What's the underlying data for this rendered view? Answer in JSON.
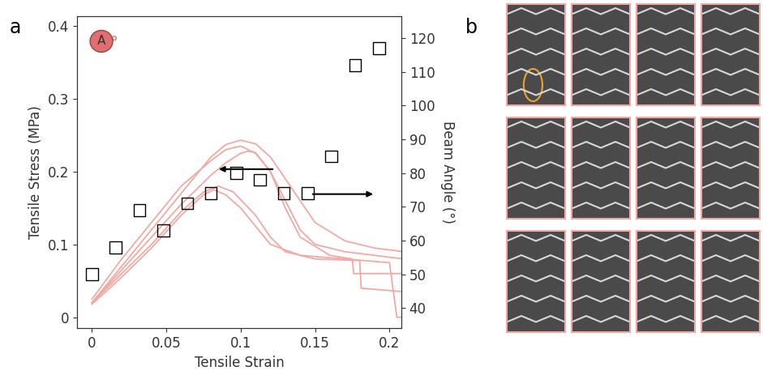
{
  "chart_data": {
    "type": "line",
    "panel_labels": [
      "a",
      "b"
    ],
    "annotation": "A",
    "x_label": "Tensile Strain",
    "y_label": "Tensile Stress (MPa)",
    "y2_label": "Beam Angle (°)",
    "xlim": [
      -0.01,
      0.208
    ],
    "xticks": [
      0,
      0.05,
      0.1,
      0.15,
      0.2
    ],
    "ylim": [
      -0.015,
      0.413
    ],
    "yticks": [
      0,
      0.1,
      0.2,
      0.3,
      0.4
    ],
    "y2lim": [
      34,
      126.5
    ],
    "y2ticks": [
      40,
      50,
      60,
      70,
      80,
      90,
      100,
      110,
      120
    ],
    "grid": false,
    "series": [
      {
        "type": "line",
        "color": "#f2a9a4",
        "line_style": "solid",
        "x": [
          0,
          0.02,
          0.04,
          0.06,
          0.08,
          0.09,
          0.1,
          0.11,
          0.12,
          0.13,
          0.14,
          0.15,
          0.17,
          0.19,
          0.21
        ],
        "values": [
          0.02,
          0.07,
          0.12,
          0.17,
          0.22,
          0.237,
          0.243,
          0.238,
          0.22,
          0.19,
          0.16,
          0.13,
          0.105,
          0.095,
          0.09
        ]
      },
      {
        "type": "line",
        "color": "#f2a9a4",
        "line_style": "solid",
        "x": [
          0,
          0.02,
          0.04,
          0.06,
          0.08,
          0.09,
          0.1,
          0.11,
          0.12,
          0.13,
          0.14,
          0.15,
          0.17,
          0.19,
          0.21
        ],
        "values": [
          0.025,
          0.08,
          0.13,
          0.18,
          0.215,
          0.23,
          0.235,
          0.225,
          0.2,
          0.16,
          0.12,
          0.1,
          0.09,
          0.085,
          0.08
        ]
      },
      {
        "type": "line",
        "color": "#f2a9a4",
        "line_style": "solid",
        "x": [
          0,
          0.02,
          0.04,
          0.06,
          0.08,
          0.09,
          0.1,
          0.105,
          0.11,
          0.12,
          0.13,
          0.14,
          0.16,
          0.175,
          0.176,
          0.21
        ],
        "values": [
          0.02,
          0.065,
          0.11,
          0.155,
          0.195,
          0.212,
          0.225,
          0.228,
          0.226,
          0.2,
          0.15,
          0.11,
          0.085,
          0.08,
          0.06,
          0.06
        ]
      },
      {
        "type": "line",
        "color": "#f2a9a4",
        "line_style": "solid",
        "x": [
          0,
          0.02,
          0.04,
          0.06,
          0.075,
          0.085,
          0.095,
          0.11,
          0.12,
          0.13,
          0.15,
          0.18,
          0.181,
          0.21
        ],
        "values": [
          0.02,
          0.06,
          0.1,
          0.145,
          0.172,
          0.18,
          0.172,
          0.14,
          0.11,
          0.09,
          0.08,
          0.078,
          0.04,
          0.035
        ]
      },
      {
        "type": "line",
        "color": "#f2a9a4",
        "line_style": "solid",
        "x": [
          0,
          0.02,
          0.04,
          0.06,
          0.075,
          0.082,
          0.09,
          0.1,
          0.11,
          0.12,
          0.14,
          0.17,
          0.2,
          0.205,
          0.21
        ],
        "values": [
          0.018,
          0.055,
          0.095,
          0.14,
          0.168,
          0.175,
          0.168,
          0.15,
          0.125,
          0.1,
          0.085,
          0.08,
          0.075,
          0.0,
          0.0
        ]
      },
      {
        "type": "scatter",
        "axis": "y2",
        "color": "#000000",
        "marker": "square",
        "x": [
          0,
          0.016,
          0.032,
          0.048,
          0.064,
          0.08,
          0.097,
          0.113,
          0.129,
          0.145,
          0.161,
          0.177,
          0.193
        ],
        "values": [
          50,
          58,
          69,
          63,
          71,
          74,
          80,
          78,
          74,
          74,
          85,
          112,
          117
        ]
      }
    ]
  }
}
